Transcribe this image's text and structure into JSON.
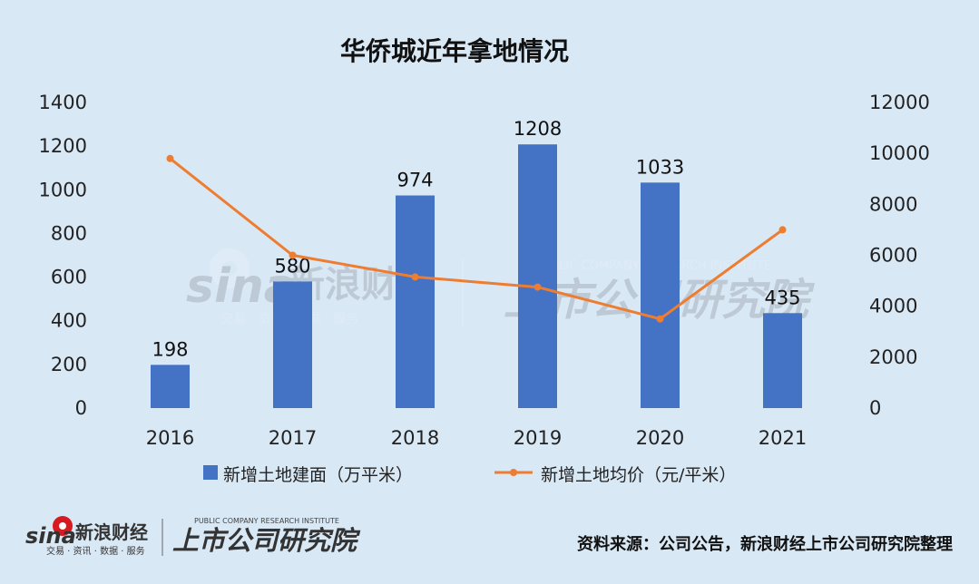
{
  "chart_data": {
    "type": "bar",
    "title": "华侨城近年拿地情况",
    "categories": [
      "2016",
      "2017",
      "2018",
      "2019",
      "2020",
      "2021"
    ],
    "series": [
      {
        "name": "新增土地建面（万平米）",
        "type": "bar",
        "axis": "left",
        "values": [
          198,
          580,
          974,
          1208,
          1033,
          435
        ],
        "color": "#4472c4"
      },
      {
        "name": "新增土地均价（元/平米）",
        "type": "line",
        "axis": "right",
        "values": [
          9800,
          6000,
          5150,
          4750,
          3500,
          7000
        ],
        "color": "#ed7d31"
      }
    ],
    "y_left": {
      "ylim": [
        0,
        1400
      ],
      "ticks": [
        "0",
        "200",
        "400",
        "600",
        "800",
        "1000",
        "1200",
        "1400"
      ]
    },
    "y_right": {
      "ylim": [
        0,
        12000
      ],
      "ticks": [
        "0",
        "2000",
        "4000",
        "6000",
        "8000",
        "10000",
        "12000"
      ]
    },
    "grid": false,
    "legend": "bottom"
  },
  "footer": {
    "source": "资料来源：公司公告，新浪财经上市公司研究院整理",
    "logo_sina": "sina",
    "logo_sina_cn": "新浪财经",
    "logo_sina_sub": "交易 · 资讯 · 数据 · 服务",
    "logo_institute": "上市公司研究院",
    "logo_institute_en": "PUBLIC COMPANY RESEARCH INSTITUTE"
  },
  "colors": {
    "background": "#d9e8f5",
    "bar": "#4472c4",
    "line": "#ed7d31",
    "logo_red": "#d71920"
  }
}
